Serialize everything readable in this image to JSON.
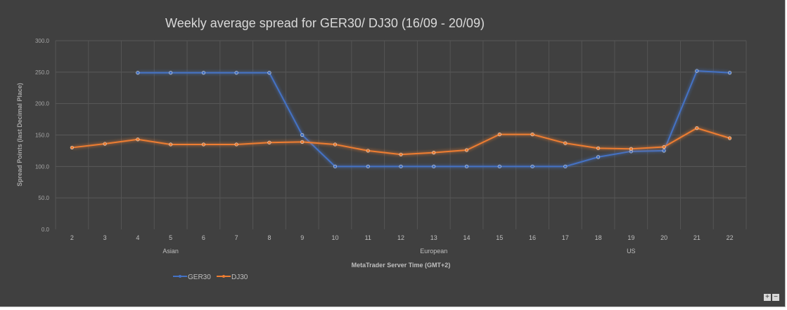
{
  "chart_data": {
    "type": "line",
    "title": "Weekly average spread for GER30/ DJ30 (16/09 - 20/09)",
    "xlabel": "MetaTrader Server Time (GMT+2)",
    "ylabel": "Spread Points  (last Decimal Place)",
    "ylim": [
      0,
      300
    ],
    "yticks": [
      "0.0",
      "50.0",
      "100.0",
      "150.0",
      "200.0",
      "250.0",
      "300.0"
    ],
    "categories": [
      "2",
      "3",
      "4",
      "5",
      "6",
      "7",
      "8",
      "9",
      "10",
      "11",
      "12",
      "13",
      "14",
      "15",
      "16",
      "17",
      "18",
      "19",
      "20",
      "21",
      "22"
    ],
    "sessions": [
      {
        "label": "Asian",
        "at": "5"
      },
      {
        "label": "European",
        "at": "13"
      },
      {
        "label": "US",
        "at": "19"
      }
    ],
    "grid": true,
    "legend": "bottom-left",
    "series": [
      {
        "name": "GER30",
        "color": "#4472c4",
        "values": [
          null,
          null,
          249,
          249,
          249,
          249,
          249,
          150,
          100,
          100,
          100,
          100,
          100,
          100,
          100,
          100,
          115,
          124,
          125,
          252,
          249
        ]
      },
      {
        "name": "DJ30",
        "color": "#ed7d31",
        "values": [
          130,
          136,
          143,
          135,
          135,
          135,
          138,
          139,
          135,
          125,
          119,
          122,
          126,
          151,
          151,
          137,
          129,
          128,
          131,
          161,
          145
        ]
      }
    ]
  },
  "controls": {
    "zoom_in": "+",
    "zoom_out": "−"
  }
}
